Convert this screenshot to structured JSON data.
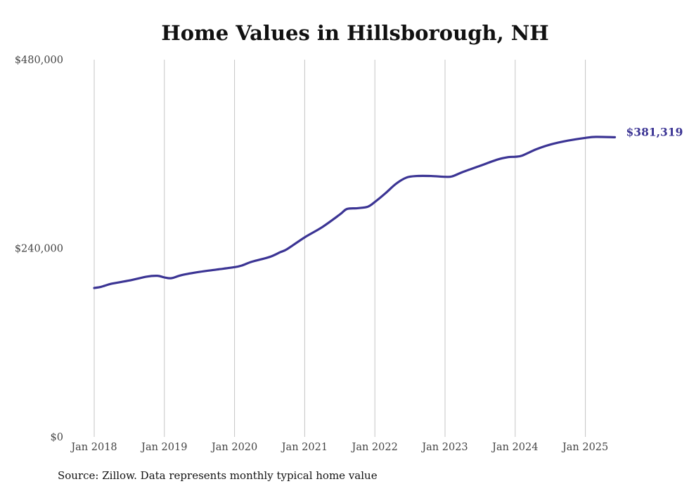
{
  "chart_data": {
    "type": "line",
    "title": "Home Values in Hillsborough, NH",
    "source": "Source: Zillow. Data represents monthly typical home value",
    "xlabel": "",
    "ylabel": "",
    "ylim": [
      0,
      480000
    ],
    "xlim": [
      2018.0,
      2025.42
    ],
    "y_ticks": [
      {
        "value": 0,
        "label": "$0"
      },
      {
        "value": 240000,
        "label": "$240,000"
      },
      {
        "value": 480000,
        "label": "$480,000"
      }
    ],
    "x_ticks": [
      {
        "value": 2018,
        "label": "Jan 2018"
      },
      {
        "value": 2019,
        "label": "Jan 2019"
      },
      {
        "value": 2020,
        "label": "Jan 2020"
      },
      {
        "value": 2021,
        "label": "Jan 2021"
      },
      {
        "value": 2022,
        "label": "Jan 2022"
      },
      {
        "value": 2023,
        "label": "Jan 2023"
      },
      {
        "value": 2024,
        "label": "Jan 2024"
      },
      {
        "value": 2025,
        "label": "Jan 2025"
      }
    ],
    "grid": "vertical",
    "line_color": "#3b3494",
    "end_label": "$381,319",
    "series": [
      {
        "name": "Typical home value",
        "x": [
          2018.0,
          2018.1,
          2018.25,
          2018.5,
          2018.75,
          2018.9,
          2019.0,
          2019.1,
          2019.25,
          2019.5,
          2019.75,
          2020.0,
          2020.1,
          2020.25,
          2020.5,
          2020.65,
          2020.75,
          2021.0,
          2021.25,
          2021.5,
          2021.6,
          2021.75,
          2021.9,
          2022.0,
          2022.15,
          2022.3,
          2022.45,
          2022.6,
          2022.8,
          2023.0,
          2023.1,
          2023.25,
          2023.5,
          2023.75,
          2023.9,
          2024.0,
          2024.1,
          2024.3,
          2024.5,
          2024.75,
          2025.0,
          2025.15,
          2025.42
        ],
        "values": [
          189500,
          191000,
          195000,
          199000,
          204000,
          205000,
          203000,
          202000,
          206000,
          210000,
          213000,
          216000,
          218000,
          223000,
          229000,
          235000,
          239000,
          254000,
          267000,
          283000,
          290000,
          291000,
          293000,
          299000,
          310000,
          322000,
          330000,
          332000,
          332000,
          331000,
          331500,
          337000,
          345000,
          353000,
          356000,
          356500,
          358000,
          366000,
          372000,
          377000,
          380500,
          381800,
          381319
        ]
      }
    ]
  }
}
